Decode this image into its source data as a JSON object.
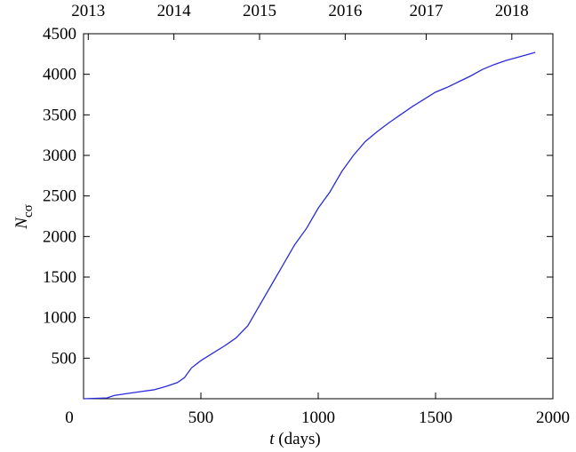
{
  "chart_data": {
    "type": "line",
    "xlabel": {
      "main": "t",
      "rest": " (days)"
    },
    "ylabel": {
      "main": "N",
      "sub": "cσ"
    },
    "x": [
      0,
      100,
      130,
      200,
      250,
      300,
      350,
      400,
      430,
      460,
      500,
      550,
      600,
      650,
      700,
      750,
      800,
      850,
      900,
      950,
      1000,
      1050,
      1100,
      1150,
      1200,
      1250,
      1300,
      1350,
      1400,
      1450,
      1500,
      1550,
      1600,
      1650,
      1700,
      1750,
      1800,
      1850,
      1900,
      1925
    ],
    "series": [
      {
        "color": "#2b2bd9",
        "values": [
          0,
          10,
          40,
          70,
          90,
          110,
          150,
          200,
          260,
          380,
          470,
          560,
          650,
          750,
          900,
          1150,
          1400,
          1650,
          1900,
          2100,
          2350,
          2550,
          2800,
          3000,
          3170,
          3290,
          3400,
          3500,
          3600,
          3690,
          3780,
          3840,
          3910,
          3980,
          4060,
          4120,
          4170,
          4210,
          4250,
          4270
        ]
      }
    ],
    "xlim": [
      0,
      2000
    ],
    "xticks": [
      0,
      500,
      1000,
      1500,
      2000
    ],
    "ylim": [
      0,
      4500
    ],
    "yticks": [
      500,
      1000,
      1500,
      2000,
      2500,
      3000,
      3500,
      4000,
      4500
    ],
    "x2ticks": [
      {
        "value": 20,
        "label": "2013"
      },
      {
        "value": 385,
        "label": "2014"
      },
      {
        "value": 750,
        "label": "2015"
      },
      {
        "value": 1115,
        "label": "2016"
      },
      {
        "value": 1460,
        "label": "2017"
      },
      {
        "value": 1825,
        "label": "2018"
      }
    ]
  }
}
